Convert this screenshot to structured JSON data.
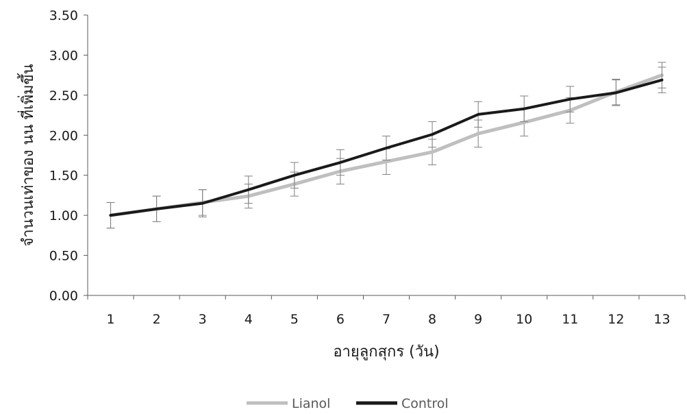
{
  "chart_data": {
    "type": "line",
    "title": "",
    "xlabel": "อายุลูกสุกร (วัน)",
    "ylabel": "จำนวนเท่าของ นน ที่เพิ่มขึ้น",
    "categories": [
      "1",
      "2",
      "3",
      "4",
      "5",
      "6",
      "7",
      "8",
      "9",
      "10",
      "11",
      "12",
      "13"
    ],
    "ylim": [
      0,
      3.5
    ],
    "y_ticks": [
      "0.00",
      "0.50",
      "1.00",
      "1.50",
      "2.00",
      "2.50",
      "3.00",
      "3.50"
    ],
    "grid": false,
    "legend_position": "bottom",
    "series": [
      {
        "name": "Lianol",
        "color": "#bfbfbf",
        "values": [
          1.0,
          1.08,
          1.16,
          1.24,
          1.39,
          1.55,
          1.67,
          1.79,
          2.02,
          2.16,
          2.31,
          2.54,
          2.75
        ],
        "error": [
          0.16,
          0.16,
          0.16,
          0.15,
          0.15,
          0.16,
          0.16,
          0.16,
          0.17,
          0.17,
          0.16,
          0.16,
          0.16
        ]
      },
      {
        "name": "Control",
        "color": "#1a1a1a",
        "values": [
          1.0,
          1.08,
          1.15,
          1.32,
          1.5,
          1.66,
          1.84,
          2.01,
          2.26,
          2.33,
          2.45,
          2.53,
          2.69
        ],
        "error": [
          0.16,
          0.16,
          0.17,
          0.17,
          0.16,
          0.16,
          0.15,
          0.16,
          0.16,
          0.16,
          0.16,
          0.16,
          0.16
        ]
      }
    ]
  }
}
